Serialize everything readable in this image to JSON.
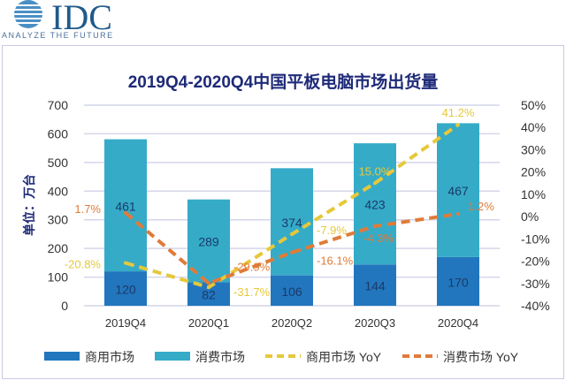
{
  "logo": {
    "text": "IDC",
    "tagline": "ANALYZE THE FUTURE"
  },
  "chart_data": {
    "type": "bar",
    "title": "2019Q4-2020Q4中国平板电脑市场出货量",
    "ylabel": "单位：万台",
    "categories": [
      "2019Q4",
      "2020Q1",
      "2020Q2",
      "2020Q3",
      "2020Q4"
    ],
    "ylim": [
      0,
      700
    ],
    "y_ticks": [
      "0",
      "100",
      "200",
      "300",
      "400",
      "500",
      "600",
      "700"
    ],
    "y2lim": [
      -40,
      50
    ],
    "y2_ticks": [
      "-40%",
      "-30%",
      "-20%",
      "-10%",
      "0%",
      "10%",
      "20%",
      "30%",
      "40%",
      "50%"
    ],
    "stacked": true,
    "grid": true,
    "legend_position": "bottom",
    "series": [
      {
        "name": "商用市场",
        "type": "bar",
        "axis": "left",
        "color": "#2276bd",
        "values": [
          120,
          82,
          106,
          144,
          170
        ],
        "labels": [
          "120",
          "82",
          "106",
          "144",
          "170"
        ]
      },
      {
        "name": "消费市场",
        "type": "bar",
        "axis": "left",
        "color": "#35abc8",
        "values": [
          461,
          289,
          374,
          423,
          467
        ],
        "labels": [
          "461",
          "289",
          "374",
          "423",
          "467"
        ]
      },
      {
        "name": "商用市场 YoY",
        "type": "line",
        "dashed": true,
        "axis": "right",
        "color": "#e6c83a",
        "values": [
          -20.8,
          -31.7,
          -7.9,
          15.0,
          41.2
        ],
        "labels": [
          "-20.8%",
          "-31.7%",
          "-7.9%",
          "15.0%",
          "41.2%"
        ]
      },
      {
        "name": "消费市场 YoY",
        "type": "line",
        "dashed": true,
        "axis": "right",
        "color": "#e07b39",
        "values": [
          1.7,
          -29.9,
          -16.1,
          -4.3,
          1.2
        ],
        "labels": [
          "1.7%",
          "-29.9%",
          "-16.1%",
          "-4.3%",
          "1.2%"
        ]
      }
    ]
  }
}
